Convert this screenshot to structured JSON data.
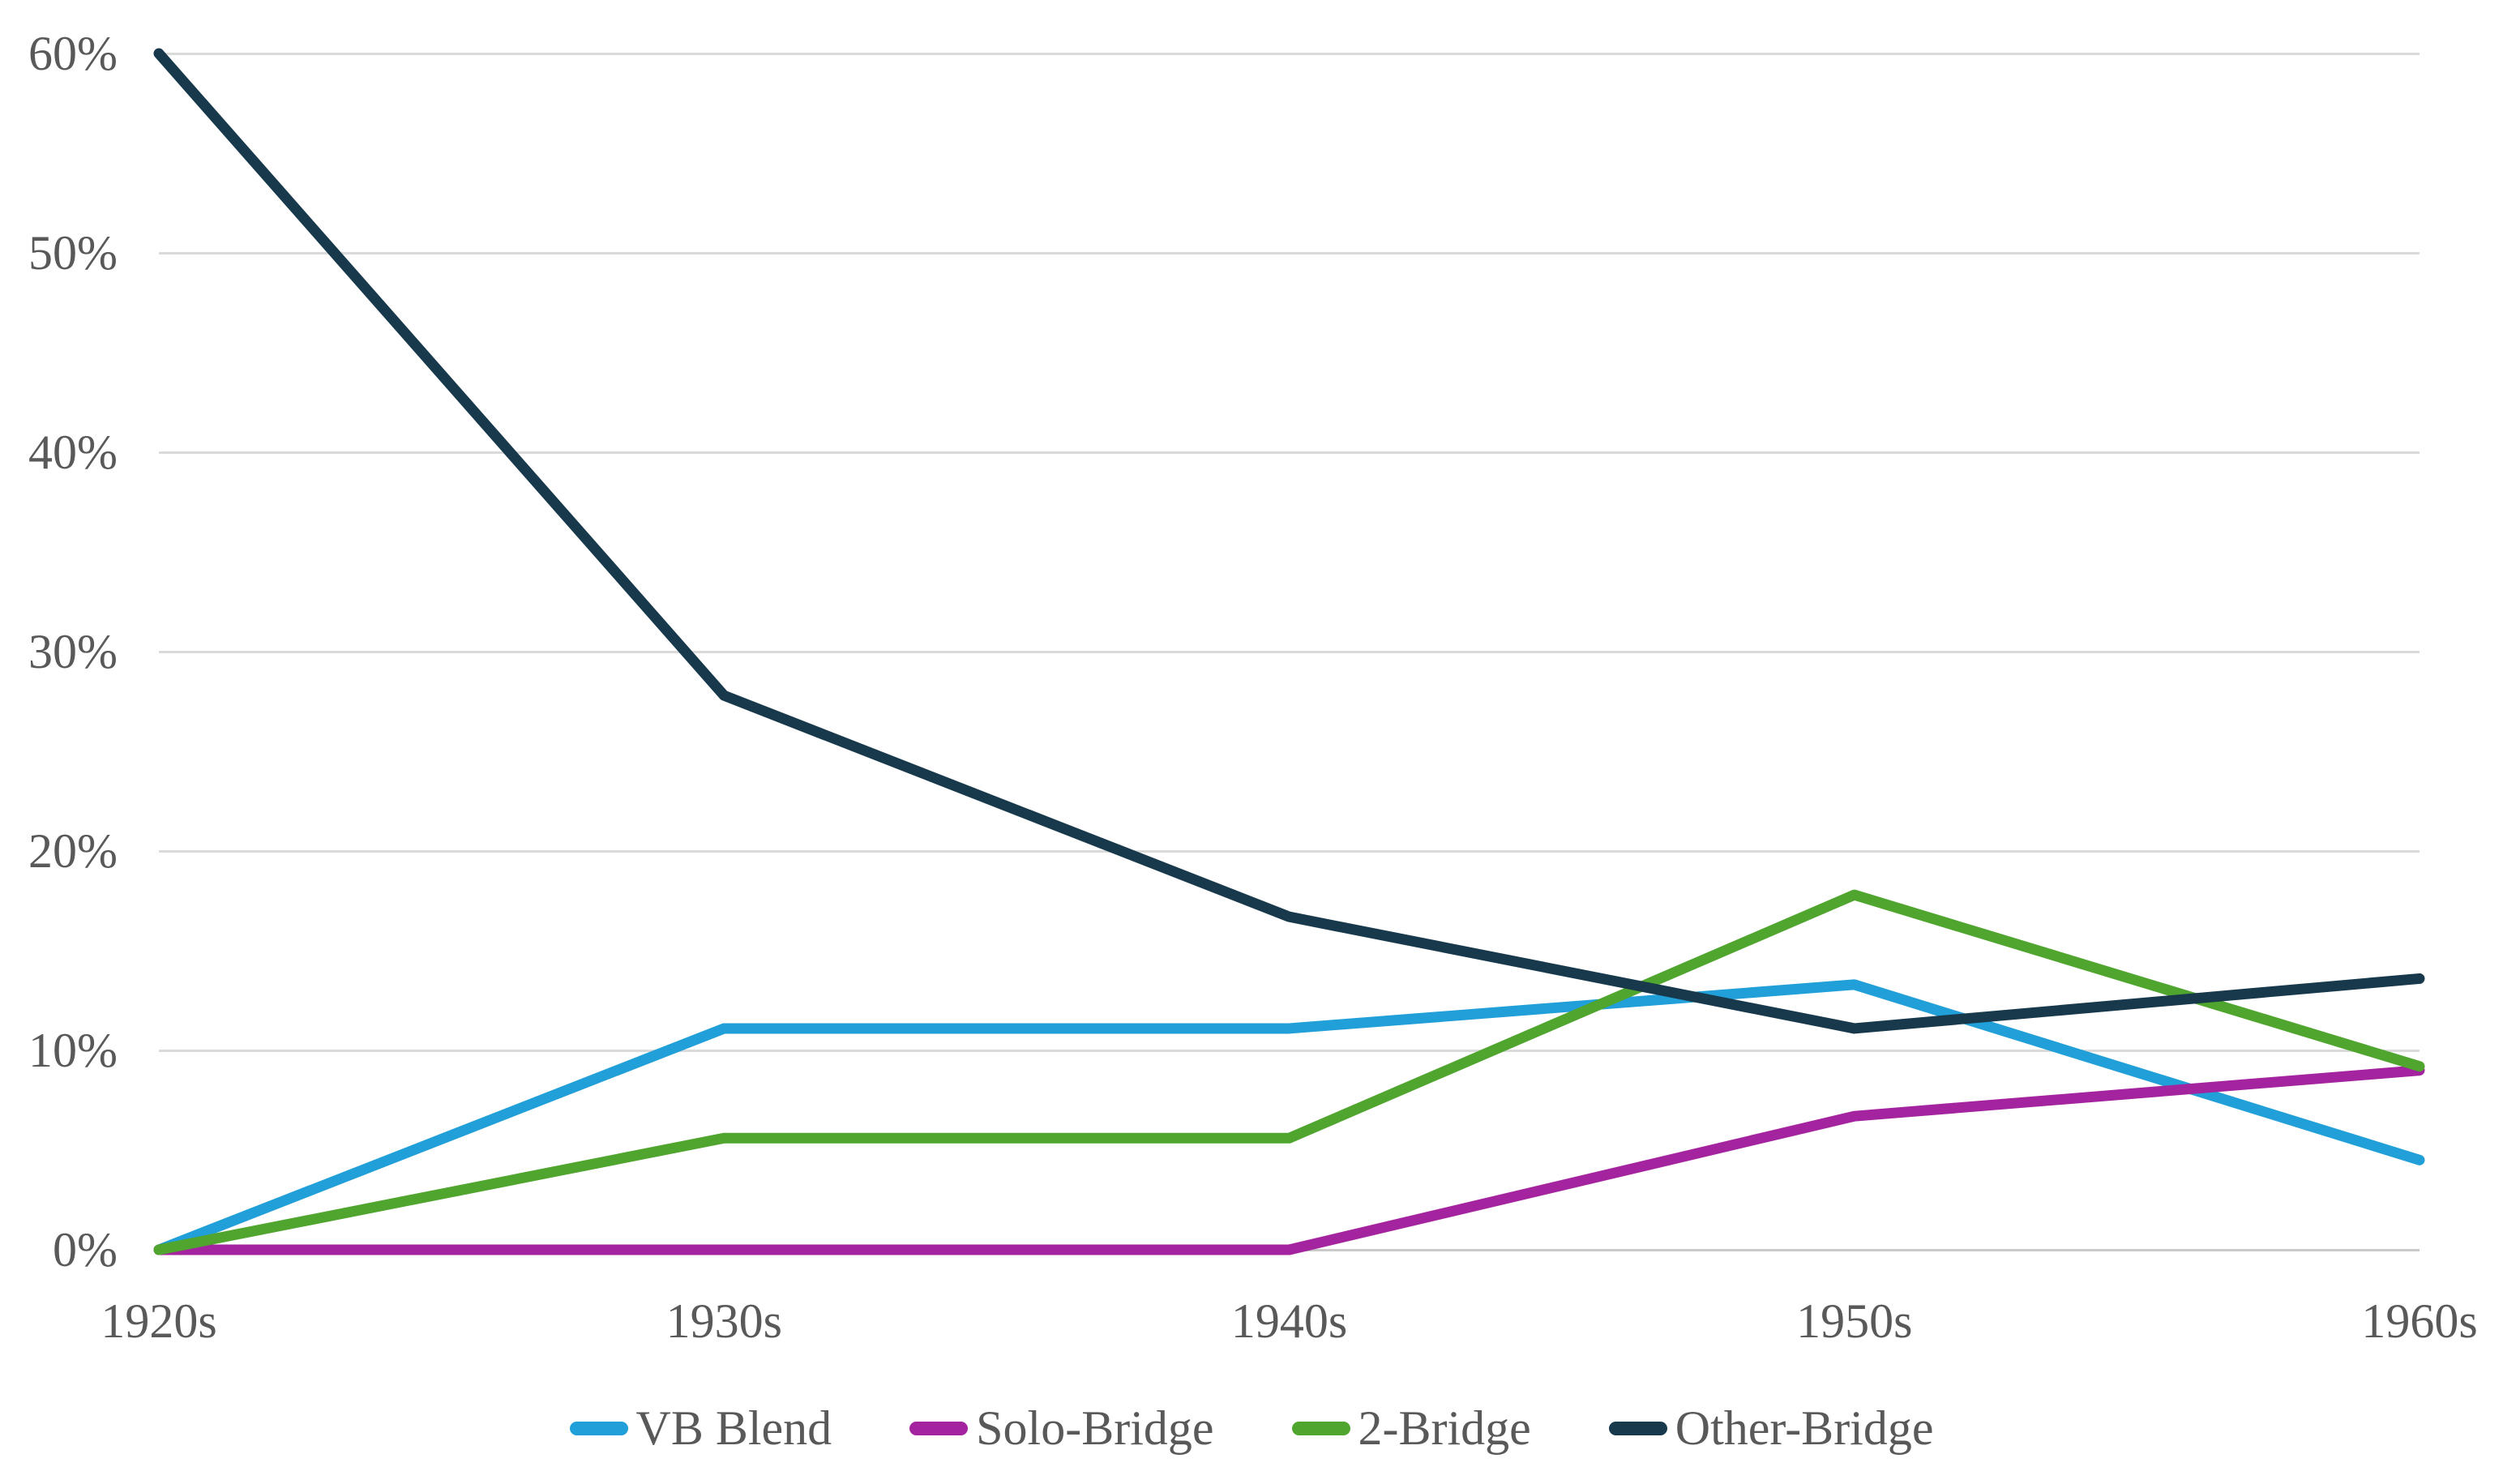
{
  "chart_data": {
    "type": "line",
    "title": "",
    "xlabel": "",
    "ylabel": "",
    "categories": [
      "1920s",
      "1930s",
      "1940s",
      "1950s",
      "1960s"
    ],
    "series": [
      {
        "name": "VB Blend",
        "color": "#219FD8",
        "values": [
          0,
          11.1,
          11.1,
          13.3,
          4.5
        ]
      },
      {
        "name": "Solo-Bridge",
        "color": "#A3249E",
        "values": [
          0,
          0,
          0,
          6.7,
          9.0
        ]
      },
      {
        "name": "2-Bridge",
        "color": "#4FA52E",
        "values": [
          0,
          5.6,
          5.6,
          17.8,
          9.2
        ]
      },
      {
        "name": "Other-Bridge",
        "color": "#17394B",
        "values": [
          60.0,
          27.8,
          16.7,
          11.1,
          13.6
        ]
      }
    ],
    "ylim": [
      0,
      60
    ],
    "ytick_labels": [
      "0%",
      "10%",
      "20%",
      "30%",
      "40%",
      "50%",
      "60%"
    ],
    "grid": "horizontal",
    "legend_position": "bottom",
    "legend_entries": [
      "VB Blend",
      "Solo-Bridge",
      "2-Bridge",
      "Other-Bridge"
    ]
  },
  "style": {
    "grid_color": "#DADADA",
    "axis_line_color": "#C9C9C9",
    "text_color": "#595959",
    "background": "#FFFFFF",
    "line_width": 13
  }
}
